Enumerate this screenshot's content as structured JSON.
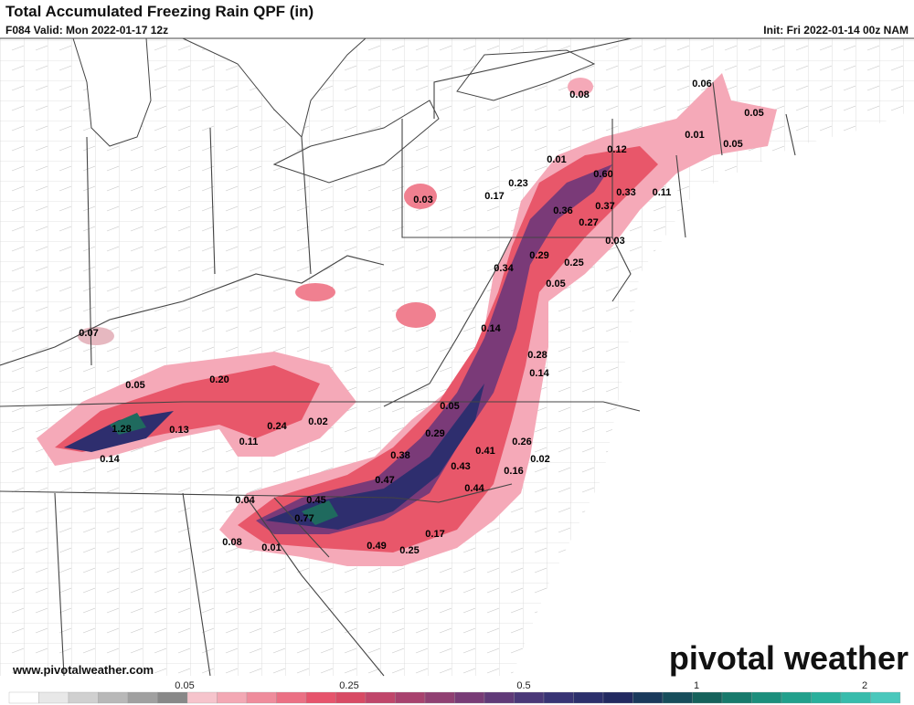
{
  "header": {
    "title": "Total Accumulated Freezing Rain QPF (in)",
    "valid": "F084 Valid: Mon 2022-01-17 12z",
    "init": "Init: Fri 2022-01-14 00z NAM"
  },
  "labels": [
    "0.08",
    "0.06",
    "0.05",
    "0.01",
    "0.05",
    "0.12",
    "0.01",
    "0.60",
    "0.23",
    "0.33",
    "0.11",
    "0.03",
    "0.17",
    "0.36",
    "0.37",
    "0.27",
    "0.03",
    "0.29",
    "0.25",
    "0.34",
    "0.05",
    "0.07",
    "0.14",
    "0.28",
    "0.14",
    "0.05",
    "0.20",
    "0.05",
    "1.28",
    "0.13",
    "0.24",
    "0.02",
    "0.29",
    "0.26",
    "0.11",
    "0.41",
    "0.38",
    "0.02",
    "0.14",
    "0.43",
    "0.16",
    "0.47",
    "0.44",
    "0.04",
    "0.45",
    "0.77",
    "0.17",
    "0.08",
    "0.01",
    "0.49",
    "0.25"
  ],
  "footer": {
    "website": "www.pivotalweather.com",
    "brand": "pivotal weather"
  },
  "colorbar": {
    "ticks": [
      "0.05",
      "0.25",
      "0.5",
      "1",
      "2"
    ]
  }
}
